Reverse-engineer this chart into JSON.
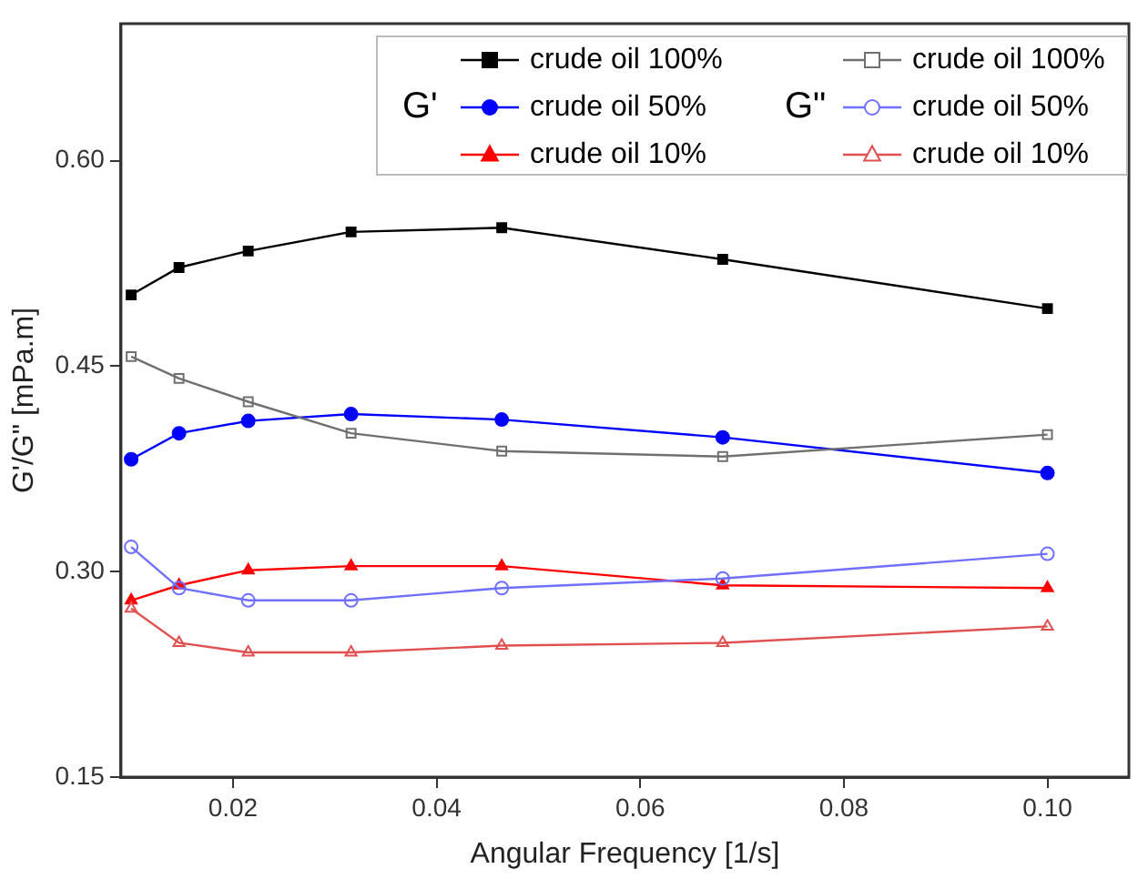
{
  "chart_data": {
    "type": "line",
    "xlabel": "Angular Frequency [1/s]",
    "ylabel": "G'/G\" [mPa.m]",
    "x": [
      0.01,
      0.0147,
      0.0215,
      0.0316,
      0.0464,
      0.0681,
      0.1
    ],
    "series": [
      {
        "name": "crude oil 100%",
        "color": "#000000",
        "marker": "square",
        "values": [
          0.502,
          0.522,
          0.534,
          0.548,
          0.551,
          0.528,
          0.492
        ]
      },
      {
        "name": "crude oil 50%",
        "color": "#0000ff",
        "marker": "circle",
        "values": [
          0.382,
          0.401,
          0.41,
          0.415,
          0.411,
          0.398,
          0.372
        ]
      },
      {
        "name": "crude oil 10%",
        "color": "#ff0000",
        "marker": "triangle",
        "values": [
          0.279,
          0.29,
          0.301,
          0.304,
          0.304,
          0.29,
          0.288
        ]
      },
      {
        "name": "crude oil 100%",
        "color": "#707070",
        "marker": "square",
        "values": [
          0.457,
          0.441,
          0.424,
          0.401,
          0.388,
          0.384,
          0.4
        ]
      },
      {
        "name": "crude oil 50%",
        "color": "#7070ff",
        "marker": "circle",
        "values": [
          0.318,
          0.288,
          0.279,
          0.279,
          0.288,
          0.295,
          0.313
        ]
      },
      {
        "name": "crude oil 10%",
        "color": "#e05050",
        "marker": "triangle",
        "values": [
          0.273,
          0.248,
          0.241,
          0.241,
          0.246,
          0.248,
          0.26
        ]
      }
    ],
    "annotations": [
      "G'",
      "G\""
    ],
    "xlim": [
      0.009,
      0.108
    ],
    "xticks": [
      0.02,
      0.04,
      0.06,
      0.08,
      {
        "value": 0.1,
        "label": "0.10"
      }
    ],
    "ylim": [
      0.15,
      0.7
    ],
    "yticks": [
      {
        "value": 0.15,
        "label": "0.15"
      },
      {
        "value": 0.3,
        "label": "0.30"
      },
      {
        "value": 0.45,
        "label": "0.45"
      },
      {
        "value": 0.6,
        "label": "0.60"
      }
    ],
    "legend": "top right",
    "grid": false
  }
}
